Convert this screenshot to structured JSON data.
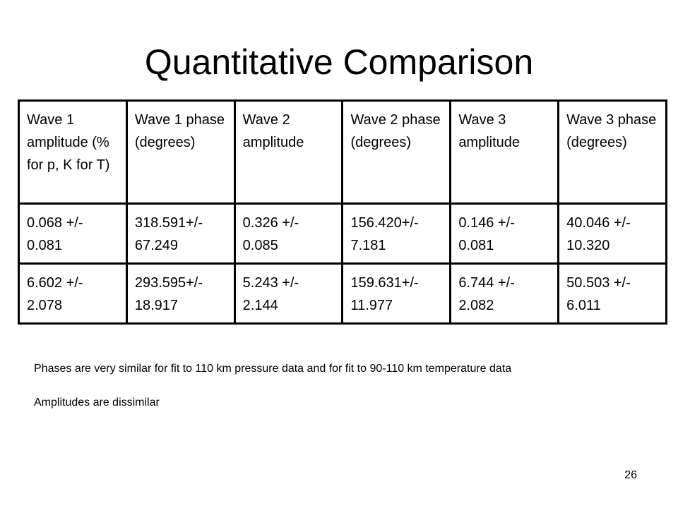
{
  "slide": {
    "title": "Quantitative Comparison",
    "page_number": "26"
  },
  "table": {
    "headers": [
      "Wave 1 amplitude (% for p, K for T)",
      "Wave 1 phase (degrees)",
      "Wave 2 amplitude",
      "Wave 2 phase (degrees)",
      "Wave 3 amplitude",
      "Wave 3 phase (degrees)"
    ],
    "rows": [
      [
        "0.068 +/- 0.081",
        "318.591+/- 67.249",
        "0.326 +/- 0.085",
        "156.420+/- 7.181",
        "0.146 +/- 0.081",
        "40.046 +/- 10.320"
      ],
      [
        "6.602 +/- 2.078",
        "293.595+/- 18.917",
        "5.243 +/- 2.144",
        "159.631+/- 11.977",
        "6.744 +/- 2.082",
        "50.503 +/- 6.011"
      ]
    ]
  },
  "notes": [
    "Phases are very similar for fit to 110 km pressure data and for fit to 90-110 km temperature data",
    "Amplitudes are dissimilar"
  ]
}
